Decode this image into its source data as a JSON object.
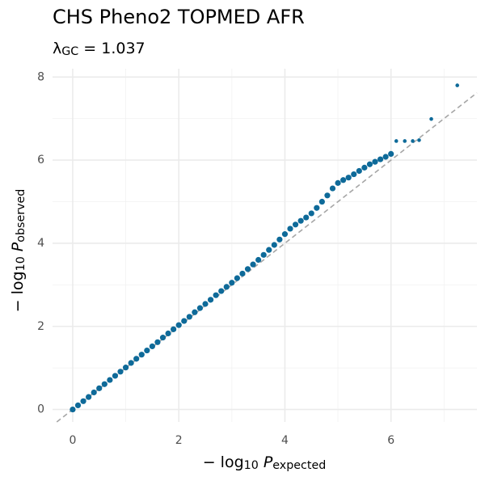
{
  "chart_data": {
    "type": "scatter",
    "title": "CHS Pheno2 TOPMED AFR",
    "subtitle": [
      {
        "text": "λ"
      },
      {
        "text": "GC",
        "sub": true
      },
      {
        "text": " = 1.037"
      }
    ],
    "xlabel": [
      {
        "text": "− log"
      },
      {
        "text": "10",
        "sub": true
      },
      {
        "text": " P",
        "italic": true
      },
      {
        "text": "expected",
        "sub": true
      }
    ],
    "ylabel": [
      {
        "text": "− log"
      },
      {
        "text": "10",
        "sub": true
      },
      {
        "text": " P",
        "italic": true
      },
      {
        "text": "observed",
        "sub": true
      }
    ],
    "xlim": [
      -0.38,
      7.62
    ],
    "ylim": [
      -0.3,
      8.2
    ],
    "xticks": [
      0,
      2,
      4,
      6
    ],
    "yticks": [
      0,
      2,
      4,
      6,
      8
    ],
    "grid": true,
    "minor_grid": true,
    "diagonal": true,
    "series": [
      {
        "color": "#0e6a99",
        "x": [
          0,
          0.1,
          0.2,
          0.3,
          0.4,
          0.5,
          0.6,
          0.7,
          0.8,
          0.9,
          1.0,
          1.1,
          1.2,
          1.3,
          1.4,
          1.5,
          1.6,
          1.7,
          1.8,
          1.9,
          2.0,
          2.1,
          2.2,
          2.3,
          2.4,
          2.5,
          2.6,
          2.7,
          2.8,
          2.9,
          3.0,
          3.1,
          3.2,
          3.3,
          3.4,
          3.5,
          3.6,
          3.7,
          3.8,
          3.9,
          4.0,
          4.1,
          4.2,
          4.3,
          4.4,
          4.5,
          4.6,
          4.7,
          4.8,
          4.9,
          5.0,
          5.1,
          5.2,
          5.3,
          5.4,
          5.5,
          5.6,
          5.7,
          5.8,
          5.9,
          6.0,
          6.1,
          6.26,
          6.41,
          6.53,
          6.76,
          7.25
        ],
        "values": [
          0,
          0.1,
          0.2,
          0.3,
          0.41,
          0.51,
          0.61,
          0.71,
          0.81,
          0.91,
          1.01,
          1.12,
          1.22,
          1.32,
          1.42,
          1.52,
          1.62,
          1.73,
          1.83,
          1.93,
          2.03,
          2.13,
          2.23,
          2.34,
          2.44,
          2.54,
          2.64,
          2.75,
          2.85,
          2.95,
          3.05,
          3.16,
          3.27,
          3.38,
          3.49,
          3.6,
          3.72,
          3.84,
          3.96,
          4.09,
          4.22,
          4.35,
          4.45,
          4.54,
          4.62,
          4.72,
          4.85,
          5.0,
          5.15,
          5.32,
          5.45,
          5.52,
          5.58,
          5.66,
          5.74,
          5.82,
          5.9,
          5.96,
          6.02,
          6.08,
          6.15,
          6.46,
          6.46,
          6.46,
          6.48,
          6.99,
          7.8
        ]
      }
    ]
  }
}
